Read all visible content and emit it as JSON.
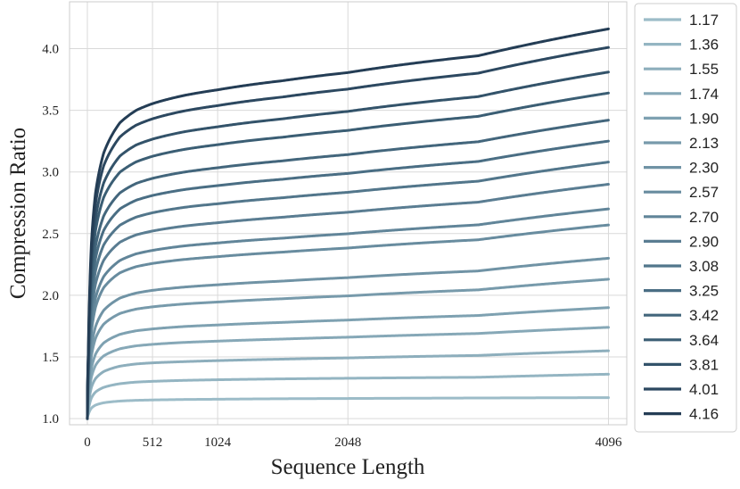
{
  "chart_data": {
    "type": "line",
    "xlabel": "Sequence Length",
    "ylabel": "Compression Ratio",
    "xlim": [
      -140,
      4240
    ],
    "ylim": [
      0.95,
      4.38
    ],
    "x_ticks": [
      0,
      512,
      1024,
      2048,
      4096
    ],
    "x_tick_labels": [
      "0",
      "512",
      "1024",
      "2048",
      "4096"
    ],
    "y_ticks": [
      1.0,
      1.5,
      2.0,
      2.5,
      3.0,
      3.5,
      4.0
    ],
    "y_tick_labels": [
      "1.0",
      "1.5",
      "2.0",
      "2.5",
      "3.0",
      "3.5",
      "4.0"
    ],
    "grid": true,
    "legend_position": "outside-right",
    "x": [
      0,
      8,
      16,
      32,
      64,
      128,
      256,
      384,
      512,
      768,
      1024,
      1536,
      2048,
      3072,
      4096
    ],
    "series": [
      {
        "name": "1.17",
        "color": "#9cbcc8",
        "values": [
          1.0,
          1.033,
          1.056,
          1.085,
          1.109,
          1.128,
          1.142,
          1.148,
          1.151,
          1.155,
          1.157,
          1.161,
          1.163,
          1.167,
          1.17
        ]
      },
      {
        "name": "1.36",
        "color": "#94b5c2",
        "values": [
          1.0,
          1.065,
          1.111,
          1.167,
          1.215,
          1.253,
          1.283,
          1.296,
          1.302,
          1.31,
          1.315,
          1.322,
          1.327,
          1.335,
          1.36
        ]
      },
      {
        "name": "1.55",
        "color": "#8daebc",
        "values": [
          1.0,
          1.098,
          1.168,
          1.253,
          1.324,
          1.381,
          1.425,
          1.443,
          1.452,
          1.462,
          1.47,
          1.482,
          1.492,
          1.512,
          1.55
        ]
      },
      {
        "name": "1.74",
        "color": "#86a8b7",
        "values": [
          1.0,
          1.13,
          1.224,
          1.336,
          1.431,
          1.508,
          1.566,
          1.59,
          1.602,
          1.618,
          1.628,
          1.645,
          1.66,
          1.69,
          1.74
        ]
      },
      {
        "name": "1.90",
        "color": "#7ea1b1",
        "values": [
          1.0,
          1.158,
          1.271,
          1.407,
          1.521,
          1.613,
          1.683,
          1.712,
          1.727,
          1.747,
          1.759,
          1.78,
          1.799,
          1.836,
          1.9
        ]
      },
      {
        "name": "2.13",
        "color": "#779aab",
        "values": [
          1.0,
          1.196,
          1.338,
          1.507,
          1.65,
          1.765,
          1.852,
          1.888,
          1.906,
          1.93,
          1.945,
          1.972,
          1.995,
          2.044,
          2.13
        ]
      },
      {
        "name": "2.30",
        "color": "#7093a5",
        "values": [
          1.0,
          1.225,
          1.387,
          1.581,
          1.745,
          1.877,
          1.977,
          2.018,
          2.04,
          2.067,
          2.085,
          2.115,
          2.143,
          2.197,
          2.3
        ]
      },
      {
        "name": "2.57",
        "color": "#688c9f",
        "values": [
          1.0,
          1.273,
          1.469,
          1.703,
          1.902,
          2.061,
          2.182,
          2.232,
          2.258,
          2.291,
          2.313,
          2.35,
          2.383,
          2.45,
          2.57
        ]
      },
      {
        "name": "2.70",
        "color": "#618599",
        "values": [
          1.0,
          1.296,
          1.509,
          1.763,
          1.978,
          2.151,
          2.282,
          2.336,
          2.364,
          2.401,
          2.424,
          2.463,
          2.499,
          2.571,
          2.7
        ]
      },
      {
        "name": "2.90",
        "color": "#5a7d92",
        "values": [
          1.0,
          1.33,
          1.567,
          1.85,
          2.09,
          2.283,
          2.43,
          2.49,
          2.521,
          2.562,
          2.588,
          2.633,
          2.673,
          2.755,
          2.9
        ]
      },
      {
        "name": "3.08",
        "color": "#52768b",
        "values": [
          1.0,
          1.362,
          1.622,
          1.933,
          2.196,
          2.407,
          2.568,
          2.634,
          2.669,
          2.714,
          2.742,
          2.791,
          2.835,
          2.925,
          3.08
        ]
      },
      {
        "name": "3.25",
        "color": "#4a6e84",
        "values": [
          1.0,
          1.392,
          1.674,
          2.011,
          2.296,
          2.525,
          2.7,
          2.771,
          2.809,
          2.858,
          2.889,
          2.941,
          2.988,
          3.085,
          3.25
        ]
      },
      {
        "name": "3.42",
        "color": "#43667c",
        "values": [
          1.0,
          1.421,
          1.725,
          2.088,
          2.395,
          2.642,
          2.83,
          2.907,
          2.948,
          3.0,
          3.034,
          3.09,
          3.141,
          3.245,
          3.42
        ]
      },
      {
        "name": "3.64",
        "color": "#3b5e74",
        "values": [
          1.0,
          1.459,
          1.791,
          2.187,
          2.523,
          2.793,
          2.998,
          3.082,
          3.127,
          3.184,
          3.221,
          3.282,
          3.337,
          3.451,
          3.64
        ]
      },
      {
        "name": "3.81",
        "color": "#33536a",
        "values": [
          1.0,
          1.489,
          1.843,
          2.265,
          2.623,
          2.91,
          3.129,
          3.219,
          3.266,
          3.327,
          3.366,
          3.431,
          3.491,
          3.611,
          3.81
        ]
      },
      {
        "name": "4.01",
        "color": "#2c4860",
        "values": [
          1.0,
          1.523,
          1.903,
          2.356,
          2.74,
          3.049,
          3.284,
          3.38,
          3.431,
          3.496,
          3.538,
          3.608,
          3.672,
          3.801,
          4.01
        ]
      },
      {
        "name": "4.16",
        "color": "#243d55",
        "values": [
          1.0,
          1.549,
          1.948,
          2.424,
          2.828,
          3.152,
          3.399,
          3.5,
          3.554,
          3.622,
          3.666,
          3.74,
          3.806,
          3.942,
          4.16
        ]
      }
    ]
  }
}
